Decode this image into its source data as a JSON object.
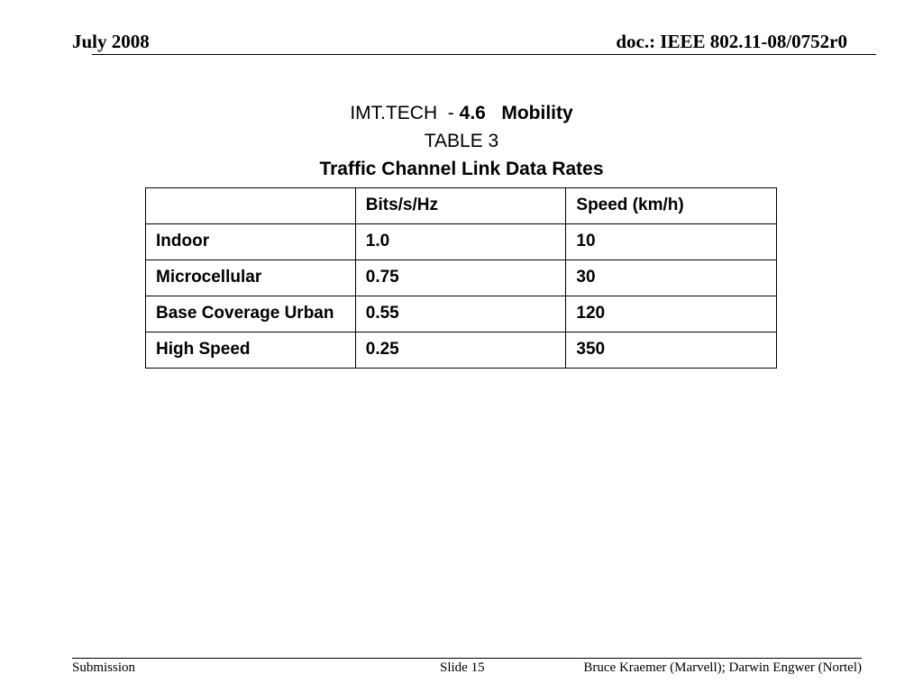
{
  "header": {
    "date": "July 2008",
    "doc_id": "doc.: IEEE 802.11-08/0752r0"
  },
  "title": {
    "line1_prefix": "IMT.TECH  - ",
    "line1_section": "4.6   Mobility",
    "line2": "TABLE 3",
    "line3": "Traffic Channel Link Data Rates"
  },
  "table": {
    "headers": [
      "",
      "Bits/s/Hz",
      "Speed (km/h)"
    ],
    "rows": [
      [
        "Indoor",
        "1.0",
        "10"
      ],
      [
        "Microcellular",
        "0.75",
        "30"
      ],
      [
        "Base Coverage Urban",
        "0.55",
        "120"
      ],
      [
        "High Speed",
        "0.25",
        "350"
      ]
    ]
  },
  "footer": {
    "left": "Submission",
    "slide": "Slide 15",
    "authors": "Bruce Kraemer (Marvell); Darwin Engwer (Nortel)"
  }
}
